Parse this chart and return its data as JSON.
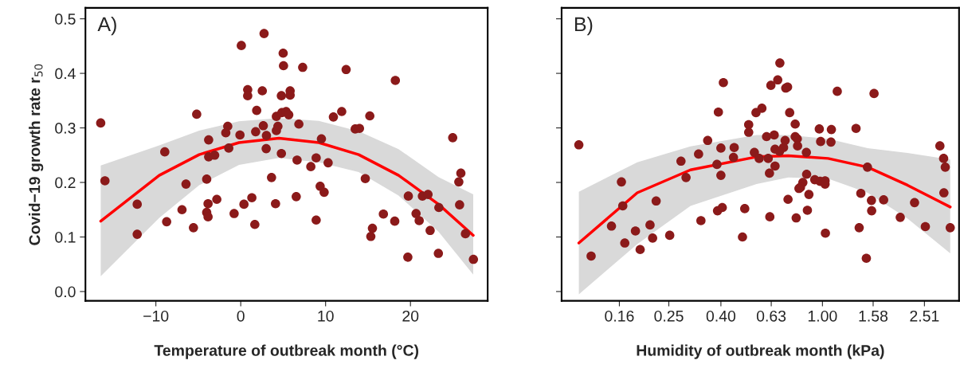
{
  "chart_data": [
    {
      "type": "scatter",
      "xlabel": "Temperature of outbreak month (°C)",
      "ylabel": "Covid−19 growth rate r$_{50}$",
      "annotations": [
        "A)"
      ],
      "xlim": [
        -18.3,
        29.1
      ],
      "ylim": [
        -0.017,
        0.52
      ],
      "xticks": [
        {
          "value": -10,
          "label": "−10"
        },
        0,
        10,
        20
      ],
      "yticks": [
        {
          "value": 0,
          "label": "0.0"
        },
        0.1,
        0.2,
        0.3,
        0.4,
        0.5
      ],
      "grid": false,
      "legend": false,
      "series": [
        {
          "type": "scatter",
          "color": "#8b1a1a",
          "marker": "circle",
          "x": [
            -16.5,
            -16.0,
            -12.2,
            -12.2,
            -8.95,
            -8.73,
            -6.92,
            -6.45,
            -5.57,
            -5.19,
            -4.01,
            -3.85,
            -4.01,
            -3.85,
            -3.78,
            -3.78,
            -3.07,
            -2.82,
            -1.76,
            -1.53,
            -1.41,
            -0.78,
            -0.09,
            0.07,
            0.38,
            0.82,
            0.82,
            1.31,
            1.66,
            1.76,
            1.88,
            2.54,
            2.66,
            2.75,
            3.03,
            3.0,
            3.63,
            4.1,
            4.2,
            4.2,
            4.38,
            4.79,
            4.79,
            4.85,
            5.0,
            5.04,
            5.35,
            5.66,
            5.82,
            5.82,
            6.54,
            6.64,
            6.85,
            7.3,
            8.26,
            8.89,
            8.89,
            9.36,
            9.51,
            9.83,
            10.3,
            12.42,
            10.92,
            11.9,
            15.21,
            13.49,
            13.99,
            18.22,
            14.68,
            15.52,
            15.33,
            16.81,
            18.15,
            19.69,
            19.75,
            20.66,
            21.03,
            21.41,
            22.07,
            22.32,
            23.35,
            23.29,
            24.98,
            25.94,
            25.7,
            25.79,
            26.48,
            27.42
          ],
          "values": [
            0.309,
            0.203,
            0.16,
            0.105,
            0.256,
            0.128,
            0.15,
            0.197,
            0.117,
            0.325,
            0.206,
            0.161,
            0.145,
            0.137,
            0.278,
            0.247,
            0.25,
            0.169,
            0.291,
            0.303,
            0.263,
            0.143,
            0.287,
            0.451,
            0.16,
            0.37,
            0.359,
            0.172,
            0.123,
            0.293,
            0.332,
            0.368,
            0.304,
            0.473,
            0.286,
            0.262,
            0.209,
            0.161,
            0.321,
            0.295,
            0.303,
            0.359,
            0.253,
            0.328,
            0.437,
            0.414,
            0.33,
            0.324,
            0.368,
            0.36,
            0.174,
            0.241,
            0.307,
            0.411,
            0.229,
            0.245,
            0.131,
            0.193,
            0.28,
            0.182,
            0.236,
            0.407,
            0.32,
            0.33,
            0.322,
            0.298,
            0.299,
            0.387,
            0.207,
            0.116,
            0.101,
            0.142,
            0.129,
            0.063,
            0.175,
            0.143,
            0.13,
            0.175,
            0.178,
            0.112,
            0.154,
            0.07,
            0.282,
            0.217,
            0.201,
            0.159,
            0.106,
            0.059
          ]
        },
        {
          "type": "line",
          "color": "#ff0000",
          "line_style": "solid",
          "x": [
            -16.5,
            -9.6,
            -4.9,
            -0.2,
            4.5,
            9.2,
            13.9,
            18.6,
            23.3,
            27.4
          ],
          "values": [
            0.129,
            0.213,
            0.251,
            0.273,
            0.281,
            0.273,
            0.251,
            0.213,
            0.16,
            0.103
          ],
          "lower": [
            0.028,
            0.135,
            0.195,
            0.232,
            0.245,
            0.237,
            0.219,
            0.176,
            0.11,
            0.031
          ],
          "upper": [
            0.231,
            0.268,
            0.295,
            0.312,
            0.318,
            0.313,
            0.294,
            0.261,
            0.21,
            0.178
          ]
        }
      ]
    },
    {
      "type": "scatter",
      "xlabel": "Humidity of outbreak month (kPa)",
      "annotations": [
        "B)"
      ],
      "log": "x",
      "tick_labels": "x",
      "xlim": [
        0.095,
        3.43
      ],
      "ylim": [
        -0.017,
        0.52
      ],
      "xticks": [
        0.16,
        0.25,
        {
          "value": 0.4,
          "label": "0.40"
        },
        0.63,
        {
          "value": 1,
          "label": "1.00"
        },
        1.58,
        2.51
      ],
      "yticks": [
        0,
        0.1,
        0.2,
        0.3,
        0.4,
        0.5
      ],
      "grid": false,
      "legend": false,
      "series": [
        {
          "type": "scatter",
          "color": "#8b1a1a",
          "marker": "circle",
          "x": [
            0.111,
            0.124,
            0.163,
            0.165,
            0.149,
            0.168,
            0.185,
            0.193,
            0.211,
            0.216,
            0.223,
            0.252,
            0.279,
            0.292,
            0.327,
            0.334,
            0.355,
            0.386,
            0.391,
            0.388,
            0.405,
            0.4,
            0.4,
            0.409,
            0.451,
            0.448,
            0.496,
            0.486,
            0.514,
            0.514,
            0.541,
            0.549,
            0.565,
            0.579,
            0.681,
            0.668,
            0.628,
            0.718,
            0.73,
            1.143,
            1.593,
            0.744,
            0.782,
            0.972,
            1.084,
            1.354,
            0.604,
            0.647,
            0.782,
            0.797,
            0.714,
            0.984,
            1.08,
            0.799,
            0.652,
            0.704,
            0.679,
            0.865,
            0.613,
            0.652,
            0.62,
            0.867,
            0.933,
            0.979,
            1.024,
            1.024,
            0.838,
            0.82,
            0.809,
            0.885,
            0.733,
            0.622,
            0.789,
            0.873,
            1.027,
            1.501,
            1.414,
            1.556,
            1.559,
            1.737,
            1.393,
            1.486,
            2.018,
            2.296,
            2.531,
            2.886,
            2.985,
            3.029,
            2.992,
            3.168
          ],
          "values": [
            0.269,
            0.065,
            0.201,
            0.157,
            0.12,
            0.089,
            0.111,
            0.077,
            0.122,
            0.098,
            0.166,
            0.103,
            0.239,
            0.209,
            0.252,
            0.13,
            0.277,
            0.233,
            0.329,
            0.148,
            0.154,
            0.263,
            0.213,
            0.383,
            0.264,
            0.246,
            0.152,
            0.1,
            0.306,
            0.292,
            0.255,
            0.328,
            0.244,
            0.336,
            0.419,
            0.388,
            0.378,
            0.373,
            0.375,
            0.367,
            0.363,
            0.328,
            0.307,
            0.298,
            0.297,
            0.299,
            0.284,
            0.287,
            0.284,
            0.28,
            0.277,
            0.275,
            0.274,
            0.267,
            0.261,
            0.264,
            0.257,
            0.255,
            0.244,
            0.23,
            0.217,
            0.215,
            0.205,
            0.202,
            0.203,
            0.197,
            0.2,
            0.191,
            0.189,
            0.178,
            0.169,
            0.137,
            0.135,
            0.149,
            0.107,
            0.228,
            0.18,
            0.167,
            0.148,
            0.168,
            0.117,
            0.061,
            0.136,
            0.163,
            0.119,
            0.267,
            0.244,
            0.228,
            0.181,
            0.117
          ]
        },
        {
          "type": "line",
          "color": "#ff0000",
          "line_style": "solid",
          "x": [
            0.111,
            0.188,
            0.304,
            0.552,
            0.735,
            1.052,
            1.504,
            2.153,
            3.168
          ],
          "values": [
            0.089,
            0.181,
            0.223,
            0.247,
            0.249,
            0.244,
            0.228,
            0.195,
            0.155
          ],
          "lower": [
            -0.005,
            0.087,
            0.157,
            0.197,
            0.209,
            0.207,
            0.181,
            0.134,
            0.07
          ],
          "upper": [
            0.183,
            0.237,
            0.266,
            0.287,
            0.287,
            0.28,
            0.263,
            0.254,
            0.242
          ]
        }
      ]
    }
  ]
}
